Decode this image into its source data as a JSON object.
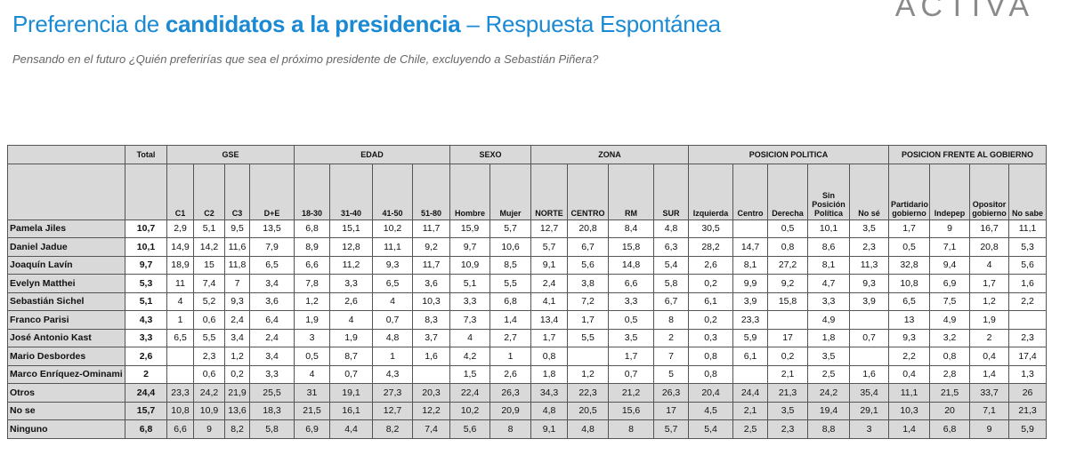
{
  "header": {
    "title": [
      "Preferencia de",
      "candidatos a la presidencia",
      "– Respuesta Espontánea"
    ],
    "logo": "ACTIVA",
    "subtitle": "Pensando en el futuro ¿Quién preferirías que sea el próximo presidente de Chile, excluyendo a Sebastián Piñera?"
  },
  "table": {
    "total_header": "Total",
    "groups": [
      {
        "label": "GSE",
        "columns": [
          "C1",
          "C2",
          "C3",
          "D+E"
        ]
      },
      {
        "label": "EDAD",
        "columns": [
          "18-30",
          "31-40",
          "41-50",
          "51-80"
        ]
      },
      {
        "label": "SEXO",
        "columns": [
          "Hombre",
          "Mujer"
        ]
      },
      {
        "label": "ZONA",
        "columns": [
          "NORTE",
          "CENTRO",
          "RM",
          "SUR"
        ]
      },
      {
        "label": "POSICION POLITICA",
        "columns": [
          "Izquierda",
          "Centro",
          "Derecha",
          "Sin Posición Política",
          "No sé"
        ]
      },
      {
        "label": "POSICION FRENTE AL GOBIERNO",
        "columns": [
          "Partidario gobierno",
          "Indepep",
          "Opositor gobierno",
          "No sabe"
        ]
      }
    ],
    "rows": [
      {
        "label": "Pamela Jiles",
        "values": [
          "10,7",
          "2,9",
          "5,1",
          "9,5",
          "13,5",
          "6,8",
          "15,1",
          "10,2",
          "11,7",
          "15,9",
          "5,7",
          "12,7",
          "20,8",
          "8,4",
          "4,8",
          "30,5",
          null,
          "0,5",
          "10,1",
          "3,5",
          "1,7",
          "9",
          "16,7",
          "11,1"
        ]
      },
      {
        "label": "Daniel Jadue",
        "values": [
          "10,1",
          "14,9",
          "14,2",
          "11,6",
          "7,9",
          "8,9",
          "12,8",
          "11,1",
          "9,2",
          "9,7",
          "10,6",
          "5,7",
          "6,7",
          "15,8",
          "6,3",
          "28,2",
          "14,7",
          "0,8",
          "8,6",
          "2,3",
          "0,5",
          "7,1",
          "20,8",
          "5,3"
        ]
      },
      {
        "label": "Joaquín Lavín",
        "values": [
          "9,7",
          "18,9",
          "15",
          "11,8",
          "6,5",
          "6,6",
          "11,2",
          "9,3",
          "11,7",
          "10,9",
          "8,5",
          "9,1",
          "5,6",
          "14,8",
          "5,4",
          "2,6",
          "8,1",
          "27,2",
          "8,1",
          "11,3",
          "32,8",
          "9,4",
          "4",
          "5,6"
        ]
      },
      {
        "label": "Evelyn Matthei",
        "values": [
          "5,3",
          "11",
          "7,4",
          "7",
          "3,4",
          "7,8",
          "3,3",
          "6,5",
          "3,6",
          "5,1",
          "5,5",
          "2,4",
          "3,8",
          "6,6",
          "5,8",
          "0,2",
          "9,9",
          "9,2",
          "4,7",
          "9,3",
          "10,8",
          "6,9",
          "1,7",
          "1,6"
        ]
      },
      {
        "label": "Sebastián Sichel",
        "values": [
          "5,1",
          "4",
          "5,2",
          "9,3",
          "3,6",
          "1,2",
          "2,6",
          "4",
          "10,3",
          "3,3",
          "6,8",
          "4,1",
          "7,2",
          "3,3",
          "6,7",
          "6,1",
          "3,9",
          "15,8",
          "3,3",
          "3,9",
          "6,5",
          "7,5",
          "1,2",
          "2,2"
        ]
      },
      {
        "label": "Franco Parisi",
        "values": [
          "4,3",
          "1",
          "0,6",
          "2,4",
          "6,4",
          "1,9",
          "4",
          "0,7",
          "8,3",
          "7,3",
          "1,4",
          "13,4",
          "1,7",
          "0,5",
          "8",
          "0,2",
          "23,3",
          null,
          "4,9",
          null,
          "13",
          "4,9",
          "1,9",
          null
        ]
      },
      {
        "label": "José Antonio Kast",
        "values": [
          "3,3",
          "6,5",
          "5,5",
          "3,4",
          "2,4",
          "3",
          "1,9",
          "4,8",
          "3,7",
          "4",
          "2,7",
          "1,7",
          "5,5",
          "3,5",
          "2",
          "0,3",
          "5,9",
          "17",
          "1,8",
          "0,7",
          "9,3",
          "3,2",
          "2",
          "2,3"
        ]
      },
      {
        "label": "Mario Desbordes",
        "values": [
          "2,6",
          null,
          "2,3",
          "1,2",
          "3,4",
          "0,5",
          "8,7",
          "1",
          "1,6",
          "4,2",
          "1",
          "0,8",
          null,
          "1,7",
          "7",
          "0,8",
          "6,1",
          "0,2",
          "3,5",
          null,
          "2,2",
          "0,8",
          "0,4",
          "17,4"
        ]
      },
      {
        "label": "Marco Enríquez-Ominami",
        "values": [
          "2",
          null,
          "0,6",
          "0,2",
          "3,3",
          "4",
          "0,7",
          "4,3",
          null,
          "1,5",
          "2,6",
          "1,8",
          "1,2",
          "0,7",
          "5",
          "0,8",
          null,
          "2,1",
          "2,5",
          "1,6",
          "0,4",
          "2,8",
          "1,4",
          "1,3"
        ]
      },
      {
        "label": "Otros",
        "values": [
          "24,4",
          "23,3",
          "24,2",
          "21,9",
          "25,5",
          "31",
          "19,1",
          "27,3",
          "20,3",
          "22,4",
          "26,3",
          "34,3",
          "22,3",
          "21,2",
          "26,3",
          "20,4",
          "24,4",
          "21,3",
          "24,2",
          "35,4",
          "11,1",
          "21,5",
          "33,7",
          "26"
        ]
      },
      {
        "label": "No se",
        "values": [
          "15,7",
          "10,8",
          "10,9",
          "13,6",
          "18,3",
          "21,5",
          "16,1",
          "12,7",
          "12,2",
          "10,2",
          "20,9",
          "4,8",
          "20,5",
          "15,6",
          "17",
          "4,5",
          "2,1",
          "3,5",
          "19,4",
          "29,1",
          "10,3",
          "20",
          "7,1",
          "21,3"
        ]
      },
      {
        "label": "Ninguno",
        "values": [
          "6,8",
          "6,6",
          "9",
          "8,2",
          "5,8",
          "6,9",
          "4,4",
          "8,2",
          "7,4",
          "5,6",
          "8",
          "9,1",
          "4,8",
          "8",
          "5,7",
          "5,4",
          "2,5",
          "2,3",
          "8,8",
          "3",
          "1,4",
          "6,8",
          "9",
          "5,9"
        ]
      }
    ]
  }
}
